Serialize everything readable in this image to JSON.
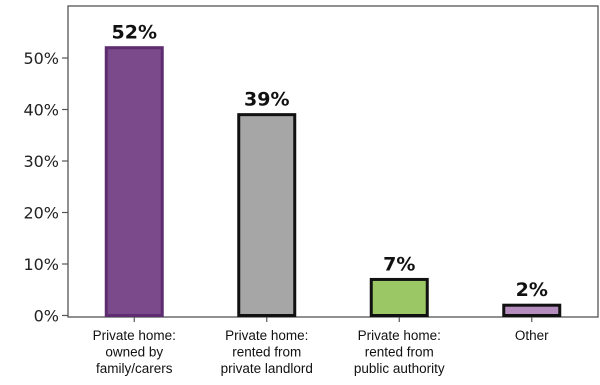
{
  "chart_data": {
    "type": "bar",
    "title": "",
    "xlabel": "",
    "ylabel": "",
    "categories": [
      [
        "Private home:",
        "owned by",
        "family/carers"
      ],
      [
        "Private home:",
        "rented from",
        "private landlord"
      ],
      [
        "Private home:",
        "rented from",
        "public authority"
      ],
      [
        "Other"
      ]
    ],
    "values": [
      52,
      39,
      7,
      2
    ],
    "data_labels": [
      "52%",
      "39%",
      "7%",
      "2%"
    ],
    "colors": [
      "#7b4a8b",
      "#a6a6a6",
      "#9bc765",
      "#b48dbe"
    ],
    "edge_colors": [
      "#5e2d70",
      "#111111",
      "#111111",
      "#111111"
    ],
    "y_ticks": [
      0,
      10,
      20,
      30,
      40,
      50
    ],
    "y_tick_labels": [
      "0%",
      "10%",
      "20%",
      "30%",
      "40%",
      "50%"
    ],
    "ylim": [
      0,
      60
    ],
    "grid": false,
    "legend": "none"
  }
}
